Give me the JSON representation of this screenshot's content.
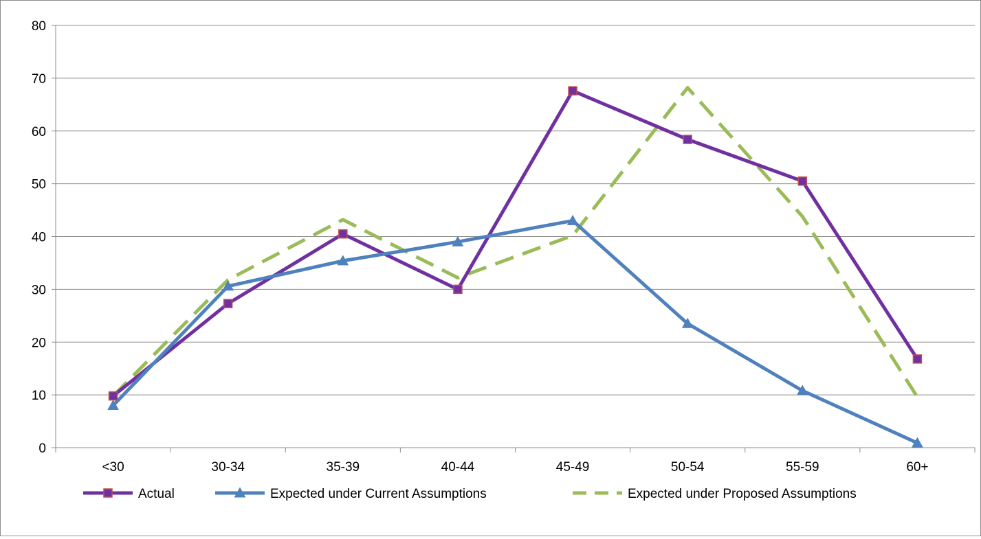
{
  "chart_data": {
    "type": "line",
    "title": "",
    "xlabel": "",
    "ylabel": "",
    "categories": [
      "<30",
      "30-34",
      "35-39",
      "40-44",
      "45-49",
      "50-54",
      "55-59",
      "60+"
    ],
    "ylim": [
      0,
      80
    ],
    "yticks": [
      0,
      10,
      20,
      30,
      40,
      50,
      60,
      70,
      80
    ],
    "grid": true,
    "legend_position": "bottom",
    "series": [
      {
        "name": "Actual",
        "values": [
          9.8,
          27.3,
          40.5,
          30.0,
          67.6,
          58.4,
          50.5,
          16.8
        ],
        "color": "#7030a0",
        "marker": "square",
        "marker_fill": "#7030a0",
        "marker_stroke": "#c0504d",
        "dash": "solid"
      },
      {
        "name": "Expected under Current Assumptions",
        "values": [
          8.0,
          30.6,
          35.4,
          39.0,
          43.0,
          23.5,
          10.8,
          0.9
        ],
        "color": "#4f81bd",
        "marker": "triangle",
        "marker_fill": "#4f81bd",
        "marker_stroke": "#4f81bd",
        "dash": "solid"
      },
      {
        "name": "Expected under Proposed Assumptions",
        "values": [
          9.8,
          31.8,
          43.2,
          32.2,
          40.2,
          68.2,
          43.8,
          9.6
        ],
        "color": "#9bbb59",
        "marker": "none",
        "dash": "dashed"
      }
    ]
  }
}
